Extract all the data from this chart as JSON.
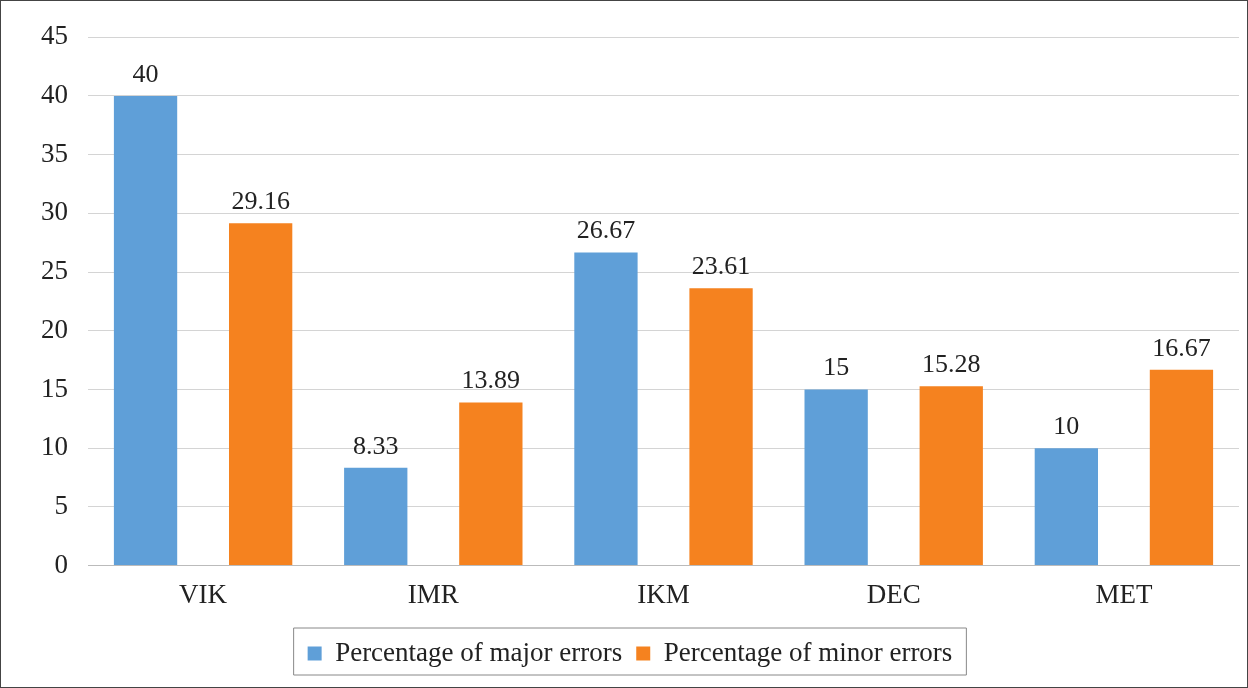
{
  "chart_data": {
    "type": "bar",
    "categories": [
      "VIK",
      "IMR",
      "IKM",
      "DEC",
      "MET"
    ],
    "series": [
      {
        "name": "Percentage of major errors",
        "color": "#5f9fd8",
        "values": [
          40,
          8.33,
          26.67,
          15,
          10
        ]
      },
      {
        "name": "Percentage of minor errors",
        "color": "#f5821f",
        "values": [
          29.16,
          13.89,
          23.61,
          15.28,
          16.67
        ]
      }
    ],
    "ylim": [
      0,
      45
    ],
    "yticks": [
      0,
      5,
      10,
      15,
      20,
      25,
      30,
      35,
      40,
      45
    ],
    "grid": "y",
    "legend": "bottom",
    "data_labels": true
  }
}
